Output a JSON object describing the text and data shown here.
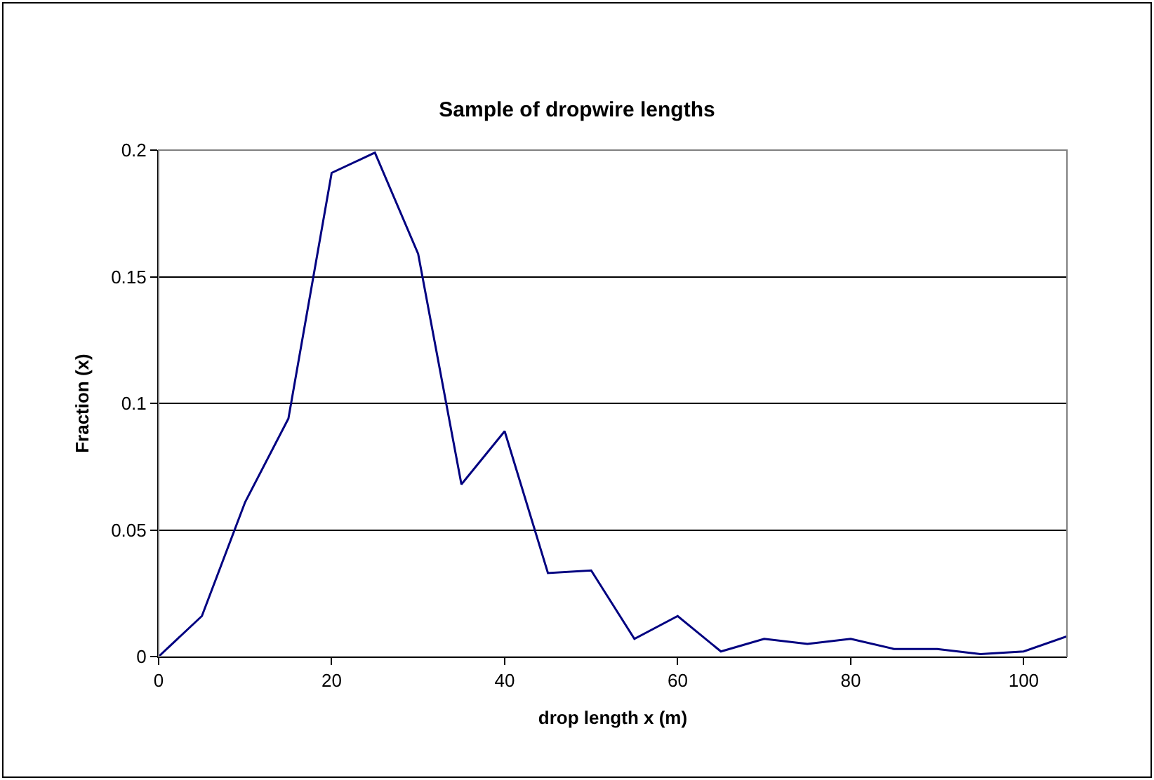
{
  "chart_data": {
    "type": "line",
    "title": "Sample of dropwire lengths",
    "xlabel": "drop length x (m)",
    "ylabel": "Fraction (x)",
    "x": [
      0,
      5,
      10,
      15,
      20,
      25,
      30,
      35,
      40,
      45,
      50,
      55,
      60,
      65,
      70,
      75,
      80,
      85,
      90,
      95,
      100,
      105
    ],
    "series": [
      {
        "color": "#000080",
        "values": [
          0,
          0.016,
          0.061,
          0.094,
          0.191,
          0.199,
          0.159,
          0.068,
          0.089,
          0.033,
          0.034,
          0.007,
          0.016,
          0.002,
          0.007,
          0.005,
          0.007,
          0.003,
          0.003,
          0.001,
          0.002,
          0.008
        ]
      }
    ],
    "xlim": [
      0,
      105
    ],
    "xticks": [
      0,
      20,
      40,
      60,
      80,
      100
    ],
    "ylim": [
      0,
      0.2
    ],
    "yticks": [
      0,
      0.05,
      0.1,
      0.15,
      0.2
    ],
    "grid": "y",
    "legend": false,
    "marker": "none",
    "line_style": "solid"
  }
}
